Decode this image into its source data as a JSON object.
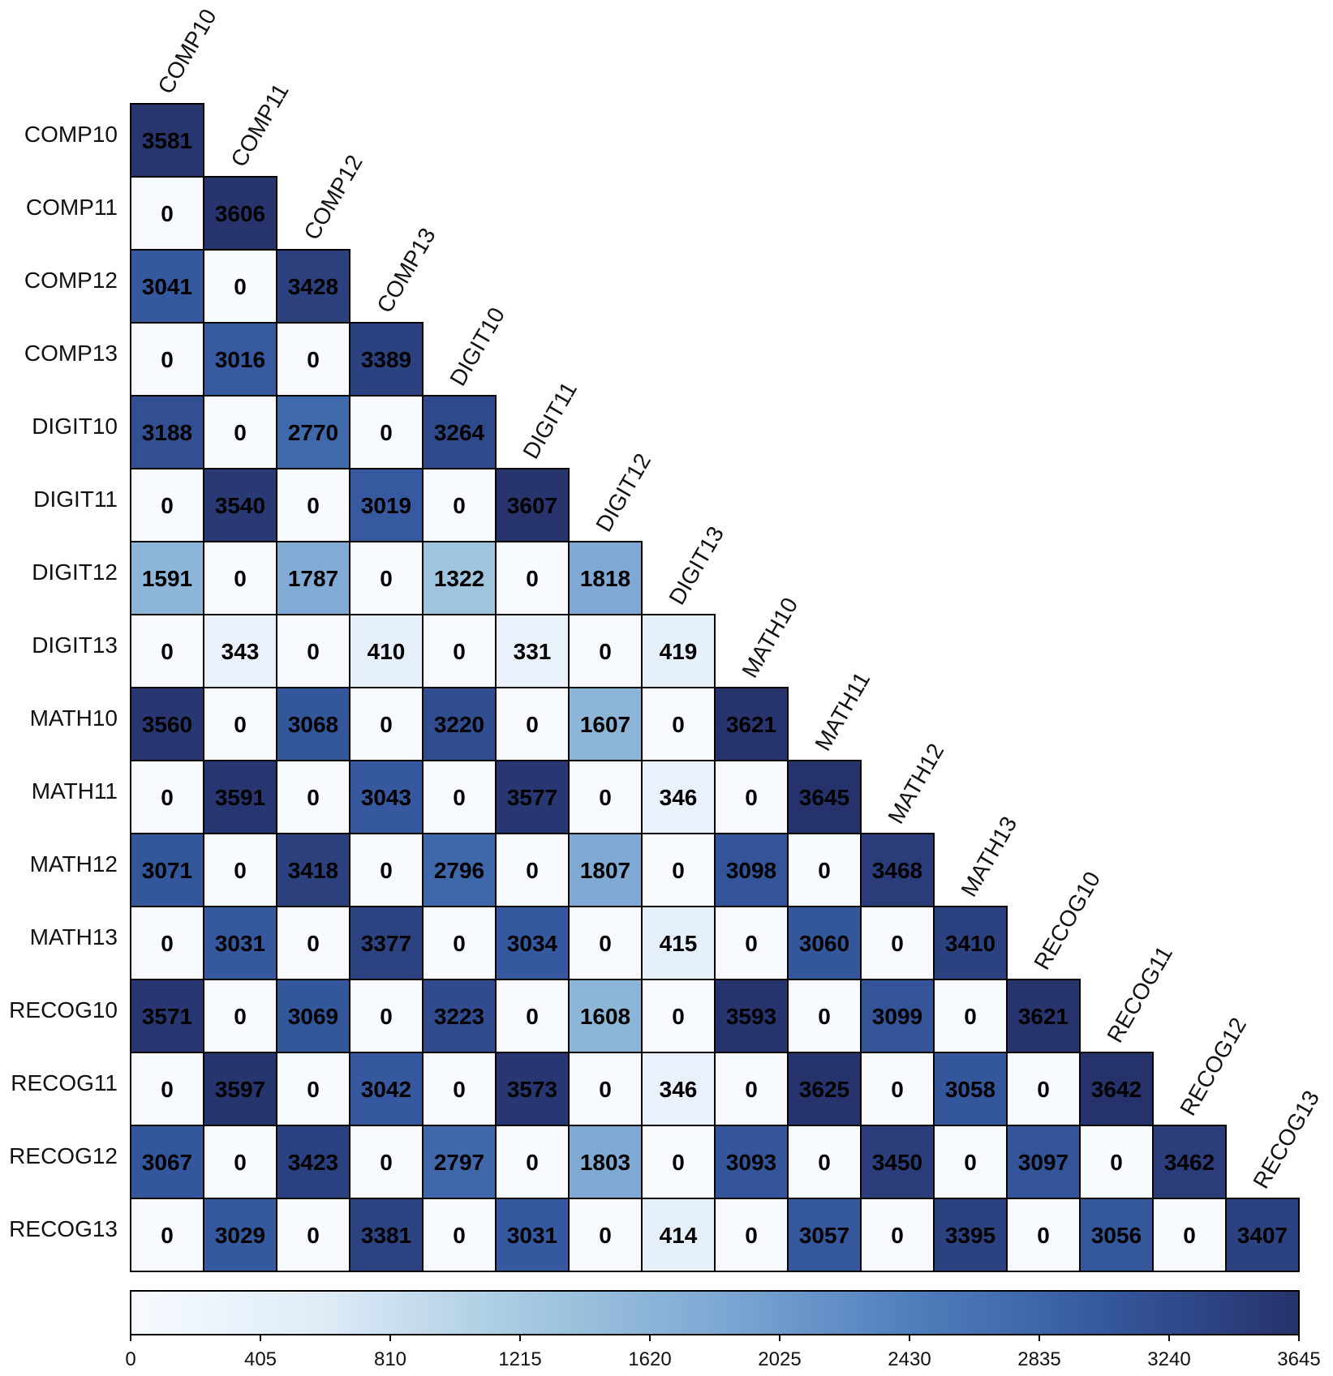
{
  "chart_data": {
    "type": "heatmap",
    "shape": "lower-triangular",
    "labels": [
      "COMP10",
      "COMP11",
      "COMP12",
      "COMP13",
      "DIGIT10",
      "DIGIT11",
      "DIGIT12",
      "DIGIT13",
      "MATH10",
      "MATH11",
      "MATH12",
      "MATH13",
      "RECOG10",
      "RECOG11",
      "RECOG12",
      "RECOG13"
    ],
    "rows": [
      [
        3581
      ],
      [
        0,
        3606
      ],
      [
        3041,
        0,
        3428
      ],
      [
        0,
        3016,
        0,
        3389
      ],
      [
        3188,
        0,
        2770,
        0,
        3264
      ],
      [
        0,
        3540,
        0,
        3019,
        0,
        3607
      ],
      [
        1591,
        0,
        1787,
        0,
        1322,
        0,
        1818
      ],
      [
        0,
        343,
        0,
        410,
        0,
        331,
        0,
        419
      ],
      [
        3560,
        0,
        3068,
        0,
        3220,
        0,
        1607,
        0,
        3621
      ],
      [
        0,
        3591,
        0,
        3043,
        0,
        3577,
        0,
        346,
        0,
        3645
      ],
      [
        3071,
        0,
        3418,
        0,
        2796,
        0,
        1807,
        0,
        3098,
        0,
        3468
      ],
      [
        0,
        3031,
        0,
        3377,
        0,
        3034,
        0,
        415,
        0,
        3060,
        0,
        3410
      ],
      [
        3571,
        0,
        3069,
        0,
        3223,
        0,
        1608,
        0,
        3593,
        0,
        3099,
        0,
        3621
      ],
      [
        0,
        3597,
        0,
        3042,
        0,
        3573,
        0,
        346,
        0,
        3625,
        0,
        3058,
        0,
        3642
      ],
      [
        3067,
        0,
        3423,
        0,
        2797,
        0,
        1803,
        0,
        3093,
        0,
        3450,
        0,
        3097,
        0,
        3462
      ],
      [
        0,
        3029,
        0,
        3381,
        0,
        3031,
        0,
        414,
        0,
        3057,
        0,
        3395,
        0,
        3056,
        0,
        3407
      ]
    ],
    "colorbar": {
      "min": 0,
      "max": 3645,
      "ticks": [
        "0",
        "405",
        "810",
        "1215",
        "1620",
        "2025",
        "2430",
        "2835",
        "3240",
        "3645"
      ],
      "colors": [
        "#f7fbff",
        "#deebf7",
        "#a6cae0",
        "#7fa9d4",
        "#4f7fbd",
        "#35589e",
        "#26326b"
      ]
    },
    "title": "",
    "xlabel": "",
    "ylabel": ""
  }
}
